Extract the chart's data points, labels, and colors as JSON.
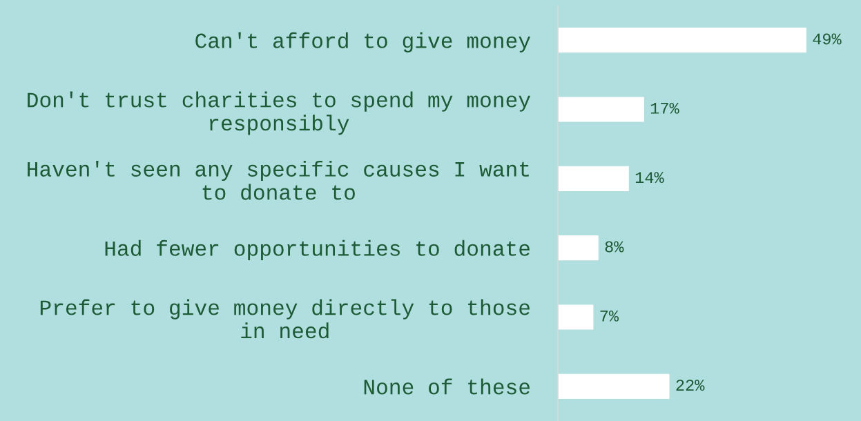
{
  "chart_data": {
    "type": "bar",
    "orientation": "horizontal",
    "categories": [
      "Can't afford to give money",
      "Don't trust charities to spend my money\nresponsibly",
      "Haven't seen any specific causes I want\nto donate to",
      "Had fewer opportunities to donate",
      "Prefer to give money directly to those\nin need",
      "None of these"
    ],
    "series": [
      {
        "color": "#ffffff",
        "values": [
          49,
          17,
          14,
          8,
          7,
          22
        ],
        "value_labels": [
          "49%",
          "17%",
          "14%",
          "8%",
          "7%",
          "22%"
        ]
      }
    ],
    "grid": false,
    "legend": false
  }
}
